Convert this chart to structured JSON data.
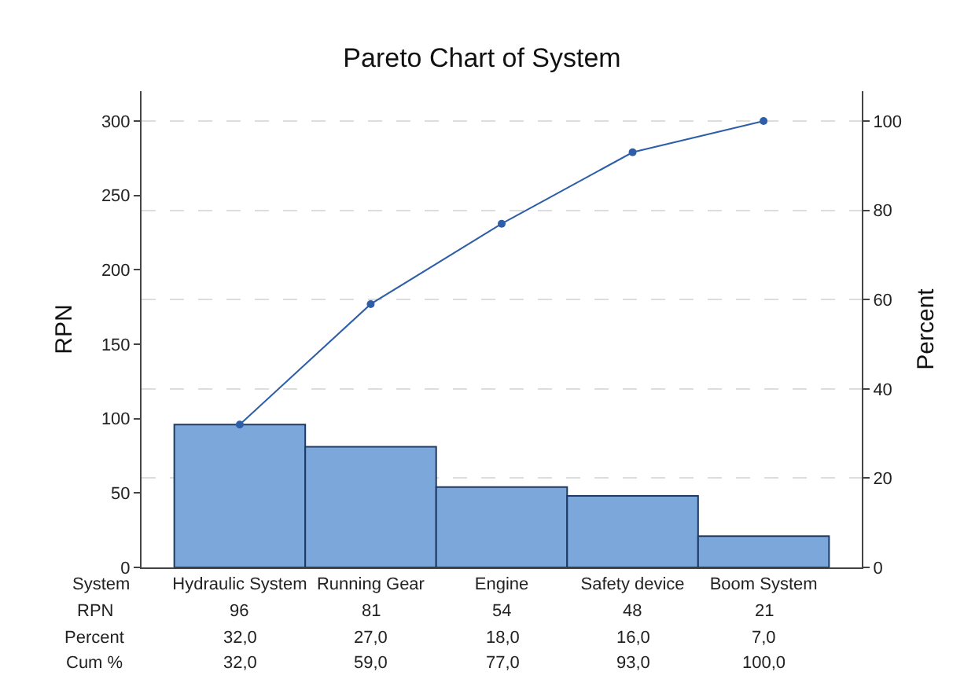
{
  "chart_data": {
    "type": "bar",
    "title": "Pareto Chart of System",
    "xlabel": "System",
    "ylabel": "RPN",
    "y2label": "Percent",
    "categories": [
      "Hydraulic System",
      "Running Gear",
      "Engine",
      "Safety device",
      "Boom System"
    ],
    "series": [
      {
        "color": "#7ba7db",
        "values": [
          96,
          81,
          54,
          48,
          21
        ],
        "value_labels": [
          "96",
          "81",
          "54",
          "48",
          "21"
        ]
      },
      {
        "type": "line",
        "axis": "y2",
        "color": "#2e5ea8",
        "values": [
          32.0,
          59.0,
          77.0,
          93.0,
          100.0
        ],
        "value_labels": [
          "32,0",
          "59,0",
          "77,0",
          "93,0",
          "100,0"
        ],
        "marker": "circle",
        "line_style": "solid"
      }
    ],
    "annotations": [
      "RPN",
      "Percent",
      "Cum %",
      "32,0",
      "27,0",
      "18,0",
      "16,0",
      "7,0"
    ],
    "ylim": [
      0,
      320
    ],
    "yticks": [
      0,
      50,
      100,
      150,
      200,
      250,
      300
    ],
    "y2lim": [
      0,
      106.7
    ],
    "y2ticks": [
      0,
      20,
      40,
      60,
      80,
      100
    ],
    "grid": "y2",
    "legend": false
  }
}
